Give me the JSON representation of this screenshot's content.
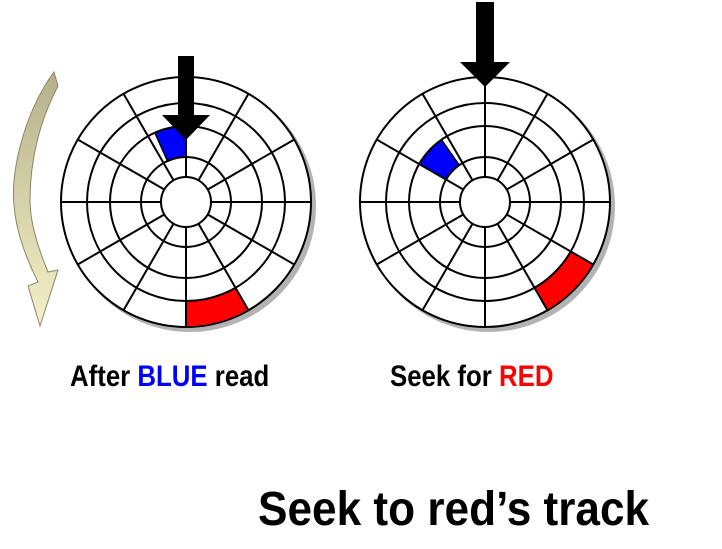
{
  "colors": {
    "blue": "#0000ff",
    "red": "#ff0000",
    "arrow": "#000000",
    "rotation_arrow_light": "#f4f1c8",
    "rotation_arrow_dark": "#b5b08a",
    "platter_shadow": "#b3b3b3"
  },
  "icons": {
    "rotation": "curved-rotation-arrow-icon",
    "head": "down-arrow-icon"
  },
  "left_caption": {
    "before": "After ",
    "highlight": "BLUE",
    "after": " read"
  },
  "right_caption": {
    "before": "Seek for ",
    "highlight": "RED"
  },
  "title": "Seek to red’s track"
}
